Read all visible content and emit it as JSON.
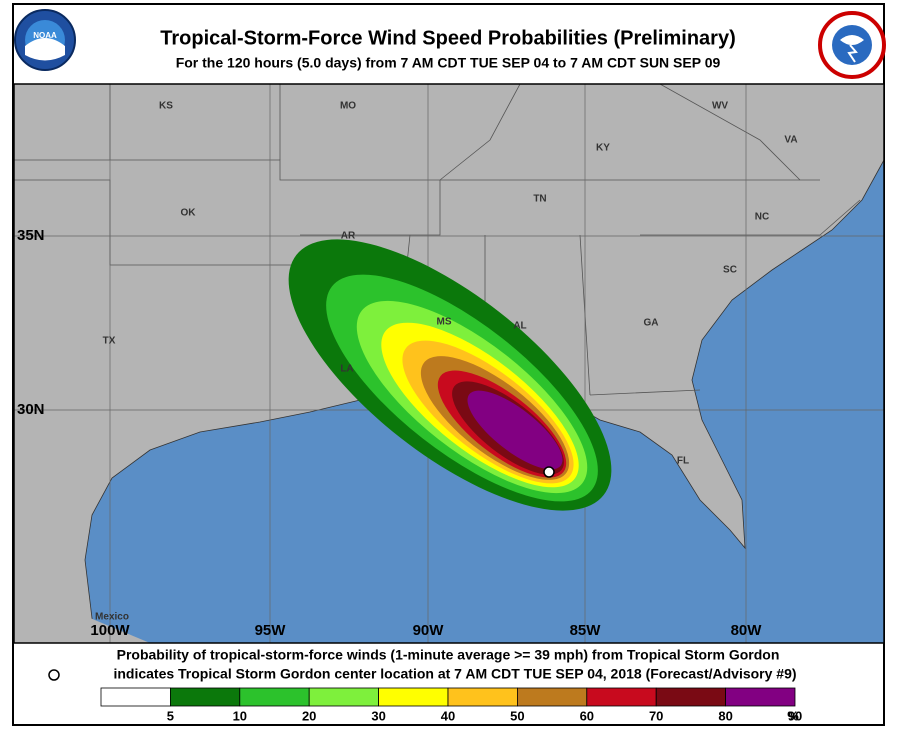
{
  "header": {
    "title": "Tropical-Storm-Force Wind Speed Probabilities (Preliminary)",
    "subtitle": "For the 120 hours (5.0 days) from 7 AM CDT TUE SEP 04 to 7 AM CDT SUN SEP 09"
  },
  "map": {
    "region_labels": [
      "KS",
      "MO",
      "WV",
      "KY",
      "VA",
      "TN",
      "OK",
      "NC",
      "AR",
      "SC",
      "MS",
      "AL",
      "GA",
      "TX",
      "LA",
      "FL",
      "Mexico"
    ],
    "lat_labels": [
      "35N",
      "30N"
    ],
    "lon_labels": [
      "100W",
      "95W",
      "90W",
      "85W",
      "80W"
    ]
  },
  "footer": {
    "line1": "Probability of tropical-storm-force winds (1-minute average >= 39 mph) from Tropical Storm Gordon",
    "line2": "indicates Tropical Storm Gordon center location at 7 AM CDT TUE SEP 04, 2018 (Forecast/Advisory #9)"
  },
  "legend": {
    "colors": [
      "#ffffff",
      "#0b780b",
      "#2cc22c",
      "#7ef03c",
      "#ffff00",
      "#ffc21c",
      "#bd7a1e",
      "#c80a1e",
      "#7a0a14",
      "#820082"
    ],
    "ticks": [
      5,
      10,
      20,
      30,
      40,
      50,
      60,
      70,
      80,
      90
    ],
    "unit": "%"
  }
}
